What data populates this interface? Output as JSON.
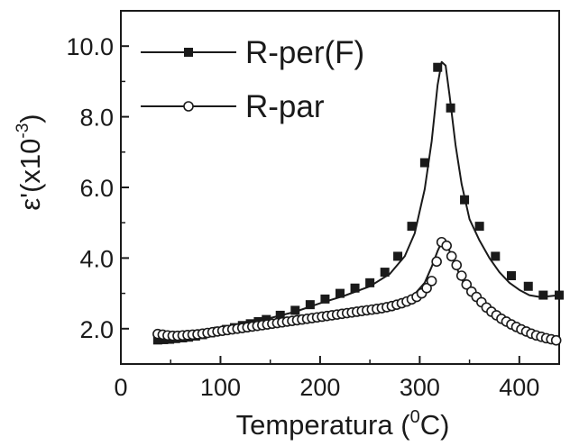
{
  "chart_data": {
    "type": "line",
    "xlabel": "Temperatura (",
    "xlabel_sup": "0",
    "xlabel_end": "C)",
    "ylabel": "ε'(x10",
    "ylabel_sup": "-3",
    "ylabel_end": ")",
    "xlim": [
      0,
      440
    ],
    "ylim": [
      1.0,
      11.0
    ],
    "xticks": [
      0,
      100,
      200,
      300,
      400
    ],
    "xtick_labels": [
      "0",
      "100",
      "200",
      "300",
      "400"
    ],
    "yticks": [
      2.0,
      4.0,
      6.0,
      8.0,
      10.0
    ],
    "ytick_labels": [
      "2.0",
      "4.0",
      "6.0",
      "8.0",
      "10.0"
    ],
    "grid": false,
    "legend": "top-left",
    "series": [
      {
        "name": "R-per(F)",
        "marker": "filled-square",
        "color": "#1a1a1a",
        "curve_x": [
          35,
          50,
          75,
          100,
          125,
          150,
          175,
          200,
          225,
          250,
          270,
          285,
          295,
          305,
          312,
          318,
          322,
          326,
          330,
          336,
          342,
          350,
          360,
          370,
          380,
          390,
          400,
          410,
          420,
          430,
          440
        ],
        "curve_y": [
          1.68,
          1.74,
          1.85,
          1.98,
          2.13,
          2.3,
          2.48,
          2.72,
          2.94,
          3.2,
          3.55,
          4.05,
          4.7,
          5.95,
          7.3,
          8.9,
          9.55,
          9.45,
          8.6,
          7.2,
          6.1,
          5.1,
          4.5,
          4.0,
          3.6,
          3.3,
          3.1,
          2.95,
          2.9,
          2.92,
          2.95
        ],
        "points_x": [
          37,
          43,
          49,
          55,
          62,
          68,
          75,
          82,
          90,
          98,
          106,
          114,
          122,
          130,
          138,
          146,
          160,
          175,
          190,
          205,
          220,
          235,
          250,
          265,
          278,
          292,
          305,
          318,
          331,
          345,
          360,
          376,
          392,
          409,
          424,
          440
        ],
        "points_y": [
          1.68,
          1.69,
          1.7,
          1.72,
          1.74,
          1.76,
          1.79,
          1.83,
          1.88,
          1.93,
          1.98,
          2.03,
          2.09,
          2.14,
          2.2,
          2.26,
          2.38,
          2.52,
          2.68,
          2.84,
          3.0,
          3.15,
          3.3,
          3.6,
          4.05,
          4.9,
          6.7,
          9.4,
          8.25,
          5.65,
          4.9,
          4.05,
          3.5,
          3.2,
          2.95,
          2.95
        ]
      },
      {
        "name": "R-par",
        "marker": "open-circle",
        "color": "#1a1a1a",
        "curve_x": [
          35,
          50,
          75,
          100,
          125,
          150,
          175,
          200,
          225,
          250,
          270,
          285,
          295,
          305,
          312,
          318,
          322,
          326,
          330,
          336,
          342,
          350,
          360,
          370,
          380,
          390,
          400,
          410,
          420,
          430,
          440
        ],
        "curve_y": [
          1.82,
          1.8,
          1.82,
          1.88,
          1.96,
          2.05,
          2.15,
          2.27,
          2.38,
          2.5,
          2.62,
          2.78,
          2.98,
          3.3,
          3.75,
          4.2,
          4.45,
          4.4,
          4.2,
          3.8,
          3.4,
          3.05,
          2.75,
          2.45,
          2.25,
          2.05,
          1.9,
          1.8,
          1.72,
          1.68,
          1.65
        ],
        "points_x": [
          37,
          42,
          47,
          52,
          57,
          62,
          67,
          72,
          77,
          82,
          87,
          92,
          97,
          102,
          107,
          112,
          117,
          122,
          127,
          132,
          137,
          142,
          147,
          152,
          157,
          162,
          167,
          172,
          177,
          182,
          187,
          192,
          197,
          202,
          207,
          212,
          217,
          222,
          227,
          232,
          237,
          242,
          247,
          252,
          257,
          262,
          267,
          272,
          277,
          282,
          287,
          292,
          297,
          302,
          307,
          312,
          317,
          322,
          327,
          332,
          337,
          342,
          347,
          352,
          357,
          362,
          367,
          372,
          377,
          382,
          387,
          392,
          397,
          402,
          407,
          412,
          417,
          422,
          427,
          432,
          437
        ],
        "points_y": [
          1.85,
          1.83,
          1.81,
          1.8,
          1.8,
          1.81,
          1.82,
          1.83,
          1.84,
          1.86,
          1.88,
          1.9,
          1.92,
          1.94,
          1.96,
          1.98,
          2.0,
          2.02,
          2.04,
          2.06,
          2.08,
          2.1,
          2.12,
          2.14,
          2.16,
          2.18,
          2.2,
          2.22,
          2.24,
          2.26,
          2.28,
          2.3,
          2.32,
          2.34,
          2.36,
          2.38,
          2.4,
          2.42,
          2.44,
          2.46,
          2.48,
          2.5,
          2.52,
          2.54,
          2.56,
          2.58,
          2.61,
          2.64,
          2.68,
          2.72,
          2.77,
          2.83,
          2.9,
          3.0,
          3.15,
          3.35,
          3.9,
          4.45,
          4.35,
          4.05,
          3.8,
          3.5,
          3.25,
          3.05,
          2.9,
          2.75,
          2.6,
          2.48,
          2.38,
          2.28,
          2.2,
          2.12,
          2.05,
          1.98,
          1.92,
          1.86,
          1.81,
          1.77,
          1.73,
          1.7,
          1.67
        ]
      }
    ]
  }
}
